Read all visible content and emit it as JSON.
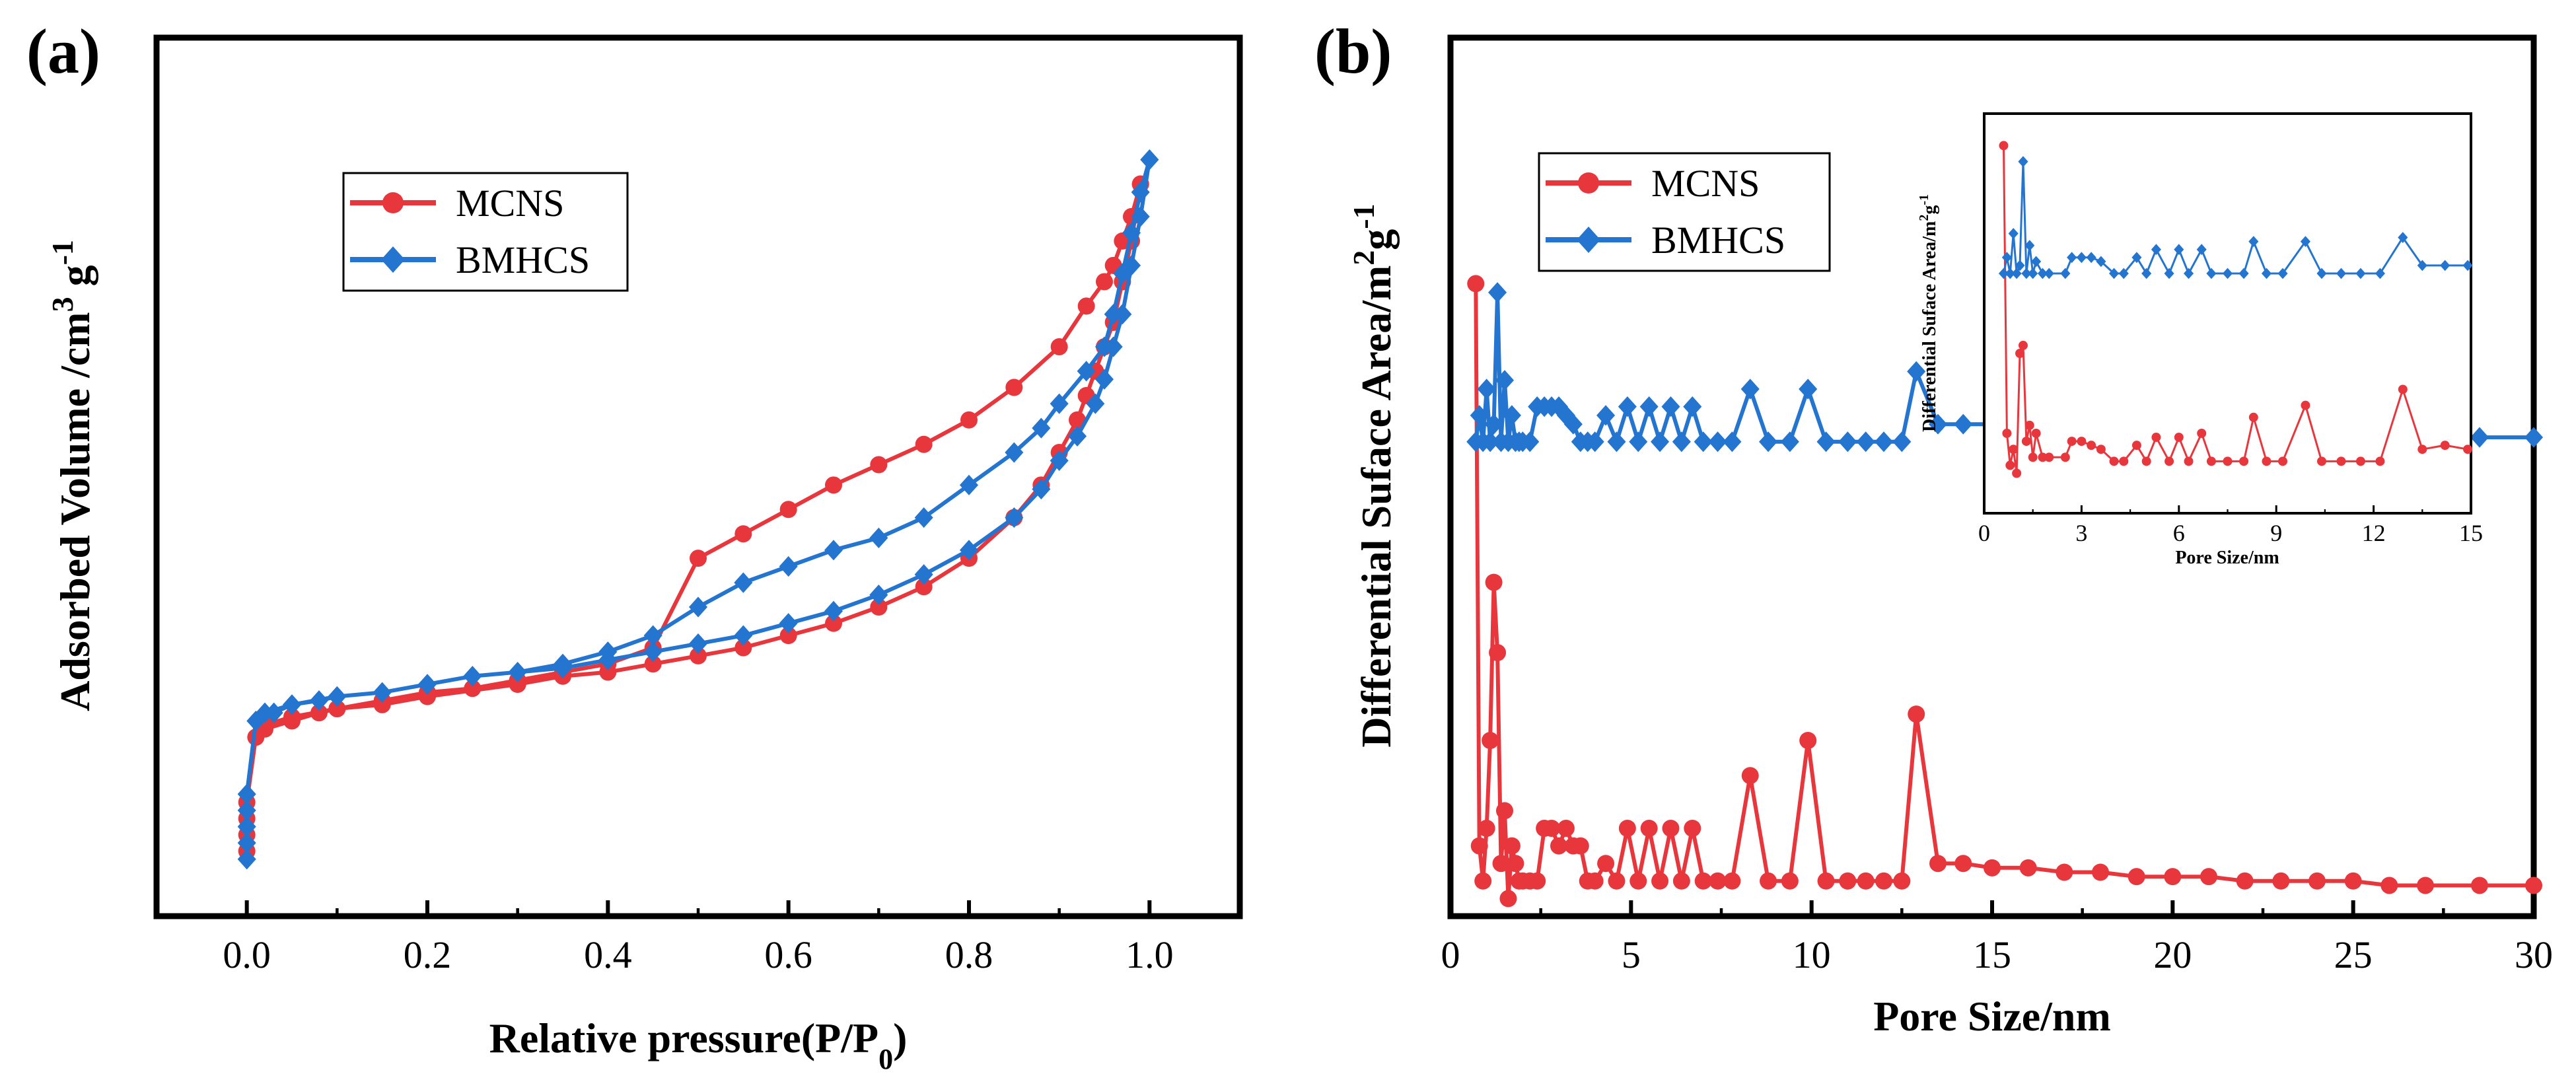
{
  "colors": {
    "mcns": "#e8363d",
    "bmhcs": "#2475d0",
    "axis": "#000000"
  },
  "chart_data": [
    {
      "id": "a",
      "type": "line",
      "panel_label": "(a)",
      "title": "",
      "xlabel": "Relative pressure(P/P0)",
      "ylabel": "Adsorbed Volume /cm3 g-1",
      "xlim": [
        -0.1,
        1.1
      ],
      "ylim": [
        -8,
        100
      ],
      "xticks": [
        0.0,
        0.2,
        0.4,
        0.6,
        0.8,
        1.0
      ],
      "xtick_labels": [
        "0.0",
        "0.2",
        "0.4",
        "0.6",
        "0.8",
        "1.0"
      ],
      "yticks_shown": false,
      "legend": {
        "position": "upper-left",
        "entries": [
          "MCNS",
          "BMHCS"
        ]
      },
      "series": [
        {
          "name": "MCNS",
          "color": "#e8363d",
          "marker": "circle",
          "x": [
            0.0,
            0.0,
            0.0,
            0.0,
            0.01,
            0.02,
            0.05,
            0.08,
            0.1,
            0.15,
            0.2,
            0.3,
            0.35,
            0.4,
            0.45,
            0.5,
            0.55,
            0.6,
            0.65,
            0.7,
            0.75,
            0.8,
            0.85,
            0.88,
            0.9,
            0.92,
            0.93,
            0.94,
            0.95,
            0.96,
            0.97,
            0.98,
            0.99,
            0.99,
            0.98,
            0.97,
            0.96,
            0.95,
            0.93,
            0.9,
            0.85,
            0.8,
            0.75,
            0.7,
            0.65,
            0.6,
            0.55,
            0.5,
            0.45,
            0.4,
            0.35,
            0.3,
            0.25,
            0.2,
            0.15,
            0.1,
            0.05,
            0.02
          ],
          "y": [
            0,
            2,
            4,
            6,
            14,
            15,
            16,
            17,
            17.5,
            18,
            19,
            20.5,
            21.5,
            22,
            23,
            24,
            25,
            26.5,
            28,
            30,
            32.5,
            36,
            41,
            45,
            49,
            53,
            56,
            59,
            62,
            65,
            70,
            75,
            82,
            82,
            78,
            75,
            72,
            70,
            67,
            62,
            57,
            53,
            50,
            47.5,
            45,
            42,
            39,
            36,
            25,
            23,
            22,
            21,
            20,
            19.5,
            18.5,
            17.5,
            16.5,
            15.5
          ]
        },
        {
          "name": "BMHCS",
          "color": "#2475d0",
          "marker": "diamond",
          "x": [
            0.0,
            0.0,
            0.0,
            0.0,
            0.0,
            0.01,
            0.03,
            0.05,
            0.08,
            0.1,
            0.15,
            0.2,
            0.25,
            0.3,
            0.35,
            0.4,
            0.45,
            0.5,
            0.55,
            0.6,
            0.65,
            0.7,
            0.75,
            0.8,
            0.85,
            0.88,
            0.9,
            0.92,
            0.94,
            0.95,
            0.96,
            0.97,
            0.98,
            0.99,
            1.0,
            1.0,
            0.99,
            0.98,
            0.97,
            0.96,
            0.95,
            0.93,
            0.9,
            0.88,
            0.85,
            0.8,
            0.75,
            0.7,
            0.65,
            0.6,
            0.55,
            0.5,
            0.45,
            0.4,
            0.35,
            0.3,
            0.25,
            0.2,
            0.15,
            0.1,
            0.05,
            0.02
          ],
          "y": [
            -1,
            1,
            3,
            5,
            7,
            16,
            17,
            18,
            18.5,
            19,
            19.5,
            20.5,
            21.5,
            22,
            22.5,
            23.5,
            24.5,
            25.5,
            26.5,
            28,
            29.5,
            31.5,
            34,
            37,
            41,
            44.5,
            48,
            51,
            55,
            58,
            62,
            66,
            72,
            78,
            85,
            85,
            81,
            76,
            71,
            66,
            62,
            59,
            55,
            52,
            49,
            45,
            41,
            38.5,
            37,
            35,
            33,
            30,
            26.5,
            24.5,
            23,
            22,
            21.5,
            20.5,
            19.5,
            19,
            18,
            17
          ]
        }
      ]
    },
    {
      "id": "b",
      "type": "line",
      "panel_label": "(b)",
      "title": "",
      "xlabel": "Pore Size/nm",
      "ylabel": "Differential Suface Area/m2g-1",
      "xlim": [
        0,
        30
      ],
      "ylim": [
        0,
        100
      ],
      "xticks": [
        0,
        5,
        10,
        15,
        20,
        25,
        30
      ],
      "xtick_labels": [
        "0",
        "5",
        "10",
        "15",
        "20",
        "25",
        "30"
      ],
      "yticks_shown": false,
      "legend": {
        "position": "upper-left",
        "entries": [
          "MCNS",
          "BMHCS"
        ]
      },
      "series": [
        {
          "name": "MCNS",
          "color": "#e8363d",
          "marker": "circle",
          "x": [
            0.7,
            0.8,
            0.9,
            1.0,
            1.1,
            1.2,
            1.3,
            1.4,
            1.5,
            1.6,
            1.7,
            1.8,
            1.9,
            2.0,
            2.2,
            2.4,
            2.6,
            2.8,
            3.0,
            3.2,
            3.4,
            3.6,
            3.8,
            4.0,
            4.3,
            4.6,
            4.9,
            5.2,
            5.5,
            5.8,
            6.1,
            6.4,
            6.7,
            7.0,
            7.4,
            7.8,
            8.3,
            8.8,
            9.4,
            9.9,
            10.4,
            11.0,
            11.5,
            12.0,
            12.5,
            12.9,
            13.5,
            14.2,
            15.0,
            16.0,
            17.0,
            18.0,
            19.0,
            20.0,
            21.0,
            22.0,
            23.0,
            24.0,
            25.0,
            26.0,
            27.0,
            28.5,
            30.0
          ],
          "y": [
            72,
            8,
            4,
            10,
            20,
            38,
            30,
            6,
            12,
            2,
            8,
            6,
            4,
            4,
            4,
            4,
            10,
            10,
            8,
            10,
            8,
            8,
            4,
            4,
            6,
            4,
            10,
            4,
            10,
            4,
            10,
            4,
            10,
            4,
            4,
            4,
            16,
            4,
            4,
            20,
            4,
            4,
            4,
            4,
            4,
            23,
            6,
            6,
            5.5,
            5.5,
            5,
            5,
            4.5,
            4.5,
            4.5,
            4,
            4,
            4,
            4,
            3.5,
            3.5,
            3.5,
            3.5
          ]
        },
        {
          "name": "BMHCS",
          "color": "#2475d0",
          "marker": "diamond",
          "x": [
            0.7,
            0.8,
            0.9,
            1.0,
            1.1,
            1.2,
            1.3,
            1.4,
            1.5,
            1.6,
            1.7,
            1.8,
            1.9,
            2.0,
            2.2,
            2.4,
            2.6,
            2.8,
            3.0,
            3.2,
            3.4,
            3.6,
            3.8,
            4.0,
            4.3,
            4.6,
            4.9,
            5.2,
            5.5,
            5.8,
            6.1,
            6.4,
            6.7,
            7.0,
            7.4,
            7.8,
            8.3,
            8.8,
            9.4,
            9.9,
            10.4,
            11.0,
            11.5,
            12.0,
            12.5,
            12.9,
            13.5,
            14.2,
            15.0,
            16.0,
            17.0,
            18.0,
            19.0,
            20.0,
            21.0,
            22.0,
            23.0,
            24.0,
            25.0,
            26.0,
            27.0,
            28.5,
            30.0
          ],
          "y": [
            54,
            57,
            54,
            60,
            54,
            56,
            71,
            54,
            61,
            54,
            57,
            54,
            54,
            54,
            54,
            58,
            58,
            58,
            58,
            57,
            56,
            54,
            54,
            54,
            57,
            54,
            58,
            54,
            58,
            54,
            58,
            54,
            58,
            54,
            54,
            54,
            60,
            54,
            54,
            60,
            54,
            54,
            54,
            54,
            54,
            62,
            56,
            56,
            56,
            55.5,
            55.5,
            55.5,
            55,
            55,
            55,
            55,
            55,
            55,
            55,
            55,
            55,
            54.5,
            54.5
          ]
        }
      ],
      "inset": {
        "xlabel": "Pore Size/nm",
        "ylabel": "Differential Suface Area/m2g-1",
        "xlim": [
          0,
          15
        ],
        "ylim": [
          0,
          100
        ],
        "xticks": [
          0,
          3,
          6,
          9,
          12,
          15
        ],
        "xtick_labels": [
          "0",
          "3",
          "6",
          "9",
          "12",
          "15"
        ],
        "series": [
          {
            "name": "MCNS",
            "x": [
              0.6,
              0.7,
              0.8,
              0.9,
              1.0,
              1.1,
              1.2,
              1.3,
              1.4,
              1.5,
              1.6,
              1.8,
              2.0,
              2.5,
              2.7,
              3.0,
              3.3,
              3.6,
              4.0,
              4.3,
              4.7,
              5.0,
              5.3,
              5.7,
              6.0,
              6.3,
              6.7,
              7.0,
              7.5,
              8.0,
              8.3,
              8.7,
              9.2,
              9.9,
              10.4,
              11.0,
              11.6,
              12.2,
              12.9,
              13.5,
              14.2,
              14.9
            ],
            "y": [
              92,
              20,
              12,
              16,
              10,
              40,
              42,
              18,
              22,
              14,
              20,
              14,
              14,
              14,
              18,
              18,
              17,
              16,
              13,
              13,
              17,
              13,
              19,
              13,
              19,
              13,
              20,
              13,
              13,
              13,
              24,
              13,
              13,
              27,
              13,
              13,
              13,
              13,
              31,
              16,
              17,
              16
            ]
          },
          {
            "name": "BMHCS",
            "x": [
              0.6,
              0.7,
              0.8,
              0.9,
              1.0,
              1.1,
              1.2,
              1.3,
              1.4,
              1.5,
              1.6,
              1.8,
              2.0,
              2.5,
              2.7,
              3.0,
              3.3,
              3.6,
              4.0,
              4.3,
              4.7,
              5.0,
              5.3,
              5.7,
              6.0,
              6.3,
              6.7,
              7.0,
              7.5,
              8.0,
              8.3,
              8.7,
              9.2,
              9.9,
              10.4,
              11.0,
              11.6,
              12.2,
              12.9,
              13.5,
              14.2,
              14.9
            ],
            "y": [
              60,
              64,
              60,
              70,
              60,
              62,
              88,
              60,
              67,
              60,
              63,
              60,
              60,
              60,
              64,
              64,
              64,
              63,
              60,
              60,
              64,
              60,
              66,
              60,
              66,
              60,
              66,
              60,
              60,
              60,
              68,
              60,
              60,
              68,
              60,
              60,
              60,
              60,
              69,
              62,
              62,
              62
            ]
          }
        ]
      }
    }
  ]
}
